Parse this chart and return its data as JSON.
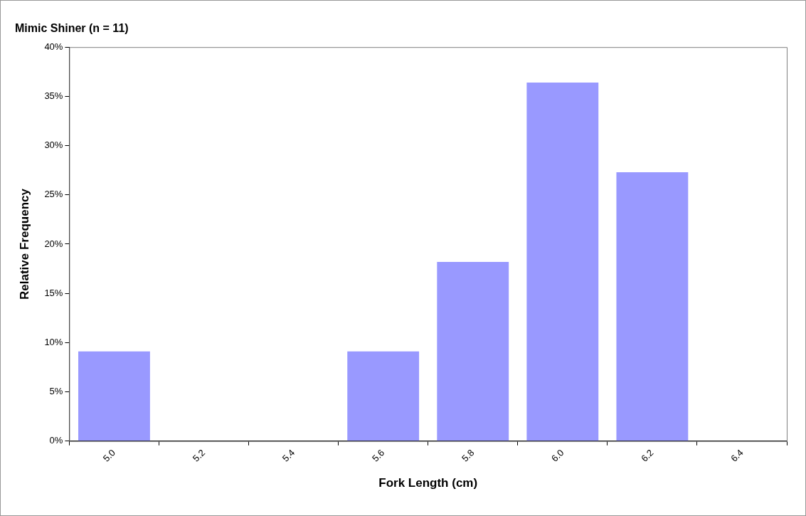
{
  "chart_data": {
    "type": "bar",
    "title": "Mimic Shiner (n = 11)",
    "xlabel": "Fork Length (cm)",
    "ylabel": "Relative Frequency",
    "categories": [
      "5.0",
      "5.2",
      "5.4",
      "5.6",
      "5.8",
      "6.0",
      "6.2",
      "6.4"
    ],
    "values": [
      9.1,
      0,
      0,
      9.1,
      18.2,
      36.4,
      27.3,
      0
    ],
    "color": "#9999ff",
    "ylim": [
      0,
      40
    ],
    "yticks": [
      {
        "value": 0,
        "label": "0%"
      },
      {
        "value": 5,
        "label": "5%"
      },
      {
        "value": 10,
        "label": "10%"
      },
      {
        "value": 15,
        "label": "15%"
      },
      {
        "value": 20,
        "label": "20%"
      },
      {
        "value": 25,
        "label": "25%"
      },
      {
        "value": 30,
        "label": "30%"
      },
      {
        "value": 35,
        "label": "35%"
      },
      {
        "value": 40,
        "label": "40%"
      }
    ],
    "grid": false
  }
}
